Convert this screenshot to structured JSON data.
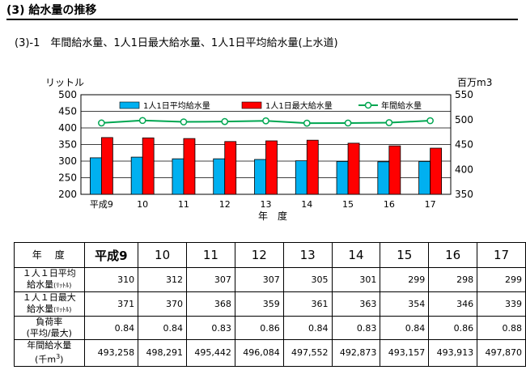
{
  "heading": "(3) 給水量の推移",
  "subtitle": "(3)-1　年間給水量、1人1日最大給水量、1人1日平均給水量(上水道)",
  "chart_data": {
    "type": "bar",
    "categories": [
      "平成9",
      "10",
      "11",
      "12",
      "13",
      "14",
      "15",
      "16",
      "17"
    ],
    "series": [
      {
        "name": "1人1日平均給水量",
        "kind": "bar",
        "axis": "left",
        "color": "#00B0F0",
        "values": [
          310,
          312,
          307,
          307,
          305,
          301,
          299,
          298,
          299
        ]
      },
      {
        "name": "1人1日最大給水量",
        "kind": "bar",
        "axis": "left",
        "color": "#FF0000",
        "values": [
          371,
          370,
          368,
          359,
          361,
          363,
          354,
          346,
          339
        ]
      },
      {
        "name": "年間給水量",
        "kind": "line",
        "axis": "right",
        "color": "#00A651",
        "values": [
          493.258,
          498.291,
          495.442,
          496.084,
          497.552,
          492.873,
          493.157,
          493.913,
          497.87
        ]
      }
    ],
    "y_left": {
      "label": "リットル",
      "min": 200,
      "max": 500,
      "ticks": [
        "200",
        "250",
        "300",
        "350",
        "400",
        "450",
        "500"
      ]
    },
    "y_right": {
      "label": "百万m3",
      "min": 350,
      "max": 550,
      "ticks": [
        "350",
        "400",
        "450",
        "500",
        "550"
      ]
    },
    "xlabel": "年　度",
    "legend_position": "top"
  },
  "table": {
    "header_label": "年　度",
    "years": [
      "平成9",
      "10",
      "11",
      "12",
      "13",
      "14",
      "15",
      "16",
      "17"
    ],
    "rows": [
      {
        "label1": "１人１日平均",
        "label2": "給水量",
        "label_small": "(ﾘｯﾄﾙ)",
        "values": [
          "310",
          "312",
          "307",
          "307",
          "305",
          "301",
          "299",
          "298",
          "299"
        ]
      },
      {
        "label1": "１人１日最大",
        "label2": "給水量",
        "label_small": "(ﾘｯﾄﾙ)",
        "values": [
          "371",
          "370",
          "368",
          "359",
          "361",
          "363",
          "354",
          "346",
          "339"
        ]
      },
      {
        "label1": "負荷率",
        "label2": "(平均/最大)",
        "label_small": "",
        "values": [
          "0.84",
          "0.84",
          "0.83",
          "0.86",
          "0.84",
          "0.83",
          "0.84",
          "0.86",
          "0.88"
        ]
      },
      {
        "label1": "年間給水量",
        "label2": "(千m",
        "label_sup": "3",
        "label_end": ")",
        "values": [
          "493,258",
          "498,291",
          "495,442",
          "496,084",
          "497,552",
          "492,873",
          "493,157",
          "493,913",
          "497,870"
        ]
      }
    ]
  }
}
